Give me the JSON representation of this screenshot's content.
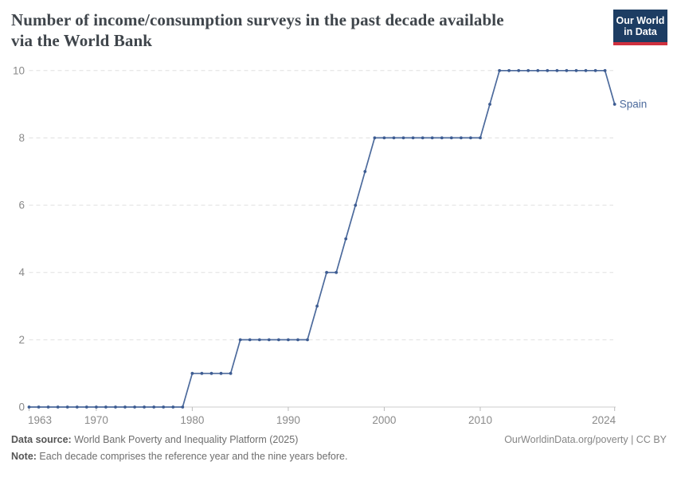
{
  "header": {
    "title_line1": "Number of income/consumption surveys in the past decade available",
    "title_line2": "via the World Bank",
    "logo": {
      "line1": "Our World",
      "line2": "in Data",
      "bg_color": "#1d3d63",
      "accent_color": "#cf303e"
    }
  },
  "chart_data": {
    "type": "line",
    "title": "Number of income/consumption surveys in the past decade available via the World Bank",
    "entity_label": "Spain",
    "x": [
      1963,
      1964,
      1965,
      1966,
      1967,
      1968,
      1969,
      1970,
      1971,
      1972,
      1973,
      1974,
      1975,
      1976,
      1977,
      1978,
      1979,
      1980,
      1981,
      1982,
      1983,
      1984,
      1985,
      1986,
      1987,
      1988,
      1989,
      1990,
      1991,
      1992,
      1993,
      1994,
      1995,
      1996,
      1997,
      1998,
      1999,
      2000,
      2001,
      2002,
      2003,
      2004,
      2005,
      2006,
      2007,
      2008,
      2009,
      2010,
      2011,
      2012,
      2013,
      2014,
      2015,
      2016,
      2017,
      2018,
      2019,
      2020,
      2021,
      2022,
      2023,
      2024
    ],
    "values": [
      0,
      0,
      0,
      0,
      0,
      0,
      0,
      0,
      0,
      0,
      0,
      0,
      0,
      0,
      0,
      0,
      0,
      1,
      1,
      1,
      1,
      1,
      2,
      2,
      2,
      2,
      2,
      2,
      2,
      2,
      3,
      4,
      4,
      5,
      6,
      7,
      8,
      8,
      8,
      8,
      8,
      8,
      8,
      8,
      8,
      8,
      8,
      8,
      9,
      10,
      10,
      10,
      10,
      10,
      10,
      10,
      10,
      10,
      10,
      10,
      10,
      9
    ],
    "xlim": [
      1963,
      2024
    ],
    "ylim": [
      0,
      10
    ],
    "x_ticks": [
      1963,
      1970,
      1980,
      1990,
      2000,
      2010,
      2024
    ],
    "y_ticks": [
      0,
      2,
      4,
      6,
      8,
      10
    ],
    "grid": "horizontal-dashed",
    "legend_position": "end-of-line-label",
    "line_color": "#4c6a9c",
    "marker_color": "#3d5c92",
    "axis_color": "#cccccc",
    "tick_color": "#bbbbbb",
    "grid_color": "#e0e0e0",
    "tick_label_color": "#8a8a8a"
  },
  "footer": {
    "data_source_label": "Data source:",
    "data_source": " World Bank Poverty and Inequality Platform (2025)",
    "note_label": "Note:",
    "note": " Each decade comprises the reference year and the nine years before.",
    "attribution": "OurWorldinData.org/poverty | CC BY"
  }
}
